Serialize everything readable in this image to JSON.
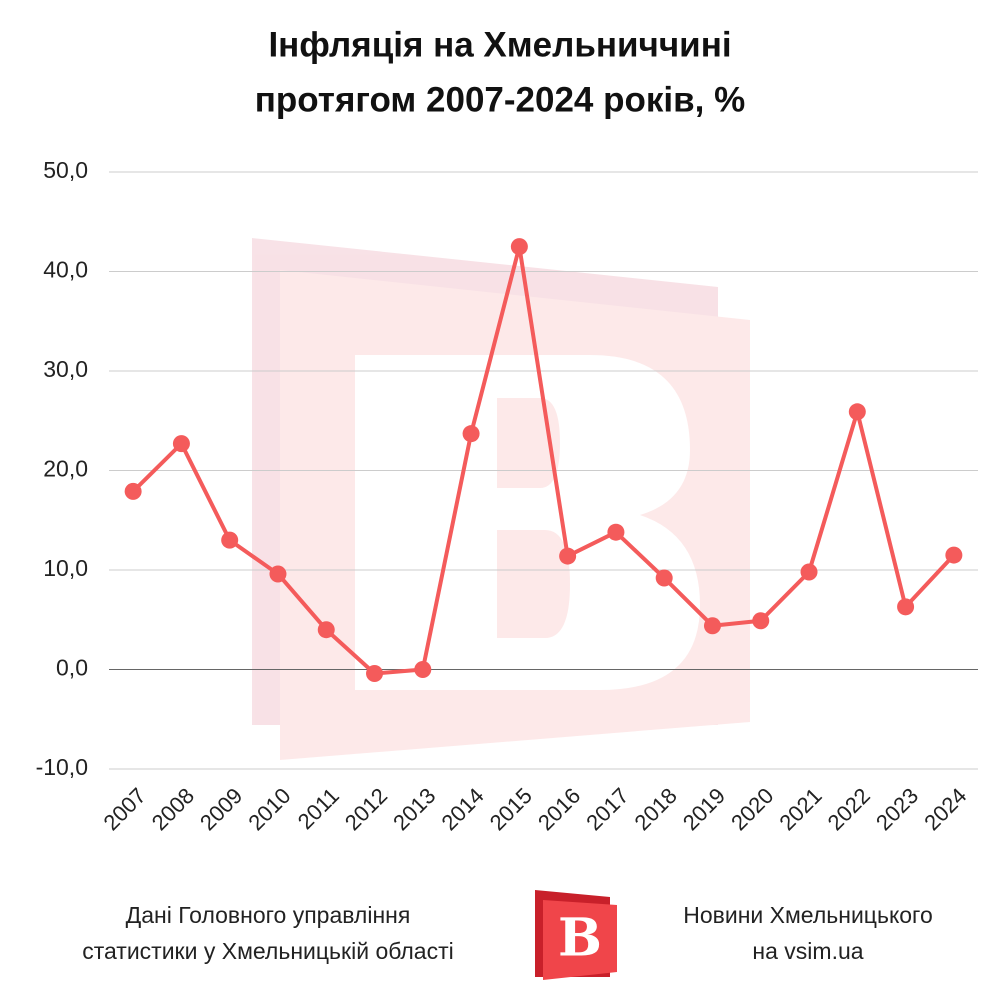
{
  "chart_data": {
    "type": "line",
    "title": [
      "Інфляція на Хмельниччині",
      "протягом 2007-2024 років, %"
    ],
    "categories": [
      "2007",
      "2008",
      "2009",
      "2010",
      "2011",
      "2012",
      "2013",
      "2014",
      "2015",
      "2016",
      "2017",
      "2018",
      "2019",
      "2020",
      "2021",
      "2022",
      "2023",
      "2024"
    ],
    "series": [
      {
        "color": "#f45b5b",
        "values": [
          17.9,
          22.7,
          13.0,
          9.6,
          4.0,
          -0.4,
          0.0,
          23.7,
          42.5,
          11.4,
          13.8,
          9.2,
          4.4,
          4.9,
          9.8,
          25.9,
          6.3,
          11.5
        ]
      }
    ],
    "ylim": [
      -10,
      50
    ],
    "yticks": [
      {
        "value": -10,
        "label": "-10,0"
      },
      {
        "value": 0,
        "label": "0,0"
      },
      {
        "value": 10,
        "label": "10,0"
      },
      {
        "value": 20,
        "label": "20,0"
      },
      {
        "value": 30,
        "label": "30,0"
      },
      {
        "value": 40,
        "label": "40,0"
      },
      {
        "value": 50,
        "label": "50,0"
      }
    ],
    "grid": true,
    "source": [
      "Дані Головного управління",
      "статистики у Хмельницькій області"
    ],
    "publisher": [
      "Новини Хмельницького",
      "на vsim.ua"
    ]
  }
}
